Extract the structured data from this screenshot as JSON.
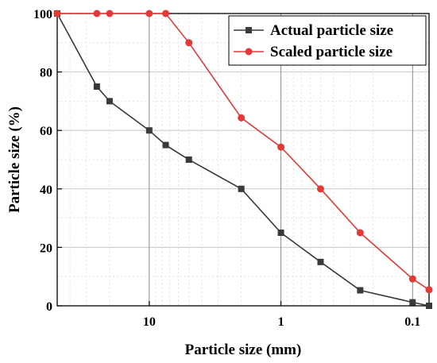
{
  "chart_data": {
    "type": "line",
    "xlabel": "Particle size (mm)",
    "ylabel": "Particle size (%)",
    "x_scale": "log",
    "x_reversed": true,
    "xlim": [
      50,
      0.075
    ],
    "ylim": [
      0,
      100
    ],
    "x_ticks": [
      {
        "value": 10,
        "label": "10"
      },
      {
        "value": 1,
        "label": "1"
      },
      {
        "value": 0.1,
        "label": "0.1"
      }
    ],
    "y_ticks": [
      {
        "value": 0,
        "label": "0"
      },
      {
        "value": 20,
        "label": "20"
      },
      {
        "value": 40,
        "label": "40"
      },
      {
        "value": 60,
        "label": "60"
      },
      {
        "value": 80,
        "label": "80"
      },
      {
        "value": 100,
        "label": "100"
      }
    ],
    "grid": true,
    "legend_position": "top-right",
    "series": [
      {
        "name": "Actual particle size",
        "color": "#3a3a3a",
        "marker": "square",
        "points": [
          {
            "x": 50,
            "y": 100
          },
          {
            "x": 25,
            "y": 75
          },
          {
            "x": 20,
            "y": 70
          },
          {
            "x": 10,
            "y": 60
          },
          {
            "x": 7.5,
            "y": 55
          },
          {
            "x": 5,
            "y": 50
          },
          {
            "x": 2,
            "y": 40
          },
          {
            "x": 1,
            "y": 25
          },
          {
            "x": 0.5,
            "y": 15
          },
          {
            "x": 0.25,
            "y": 5.3
          },
          {
            "x": 0.1,
            "y": 1.2
          },
          {
            "x": 0.075,
            "y": 0
          }
        ]
      },
      {
        "name": "Scaled particle size",
        "color": "#e53935",
        "marker": "circle",
        "points": [
          {
            "x": 50,
            "y": 100
          },
          {
            "x": 25,
            "y": 100
          },
          {
            "x": 20,
            "y": 100
          },
          {
            "x": 10,
            "y": 100
          },
          {
            "x": 7.5,
            "y": 100
          },
          {
            "x": 5,
            "y": 90
          },
          {
            "x": 2,
            "y": 64.3
          },
          {
            "x": 1,
            "y": 54.3
          },
          {
            "x": 0.5,
            "y": 40
          },
          {
            "x": 0.25,
            "y": 25
          },
          {
            "x": 0.1,
            "y": 9.2
          },
          {
            "x": 0.075,
            "y": 5.5
          }
        ]
      }
    ]
  }
}
